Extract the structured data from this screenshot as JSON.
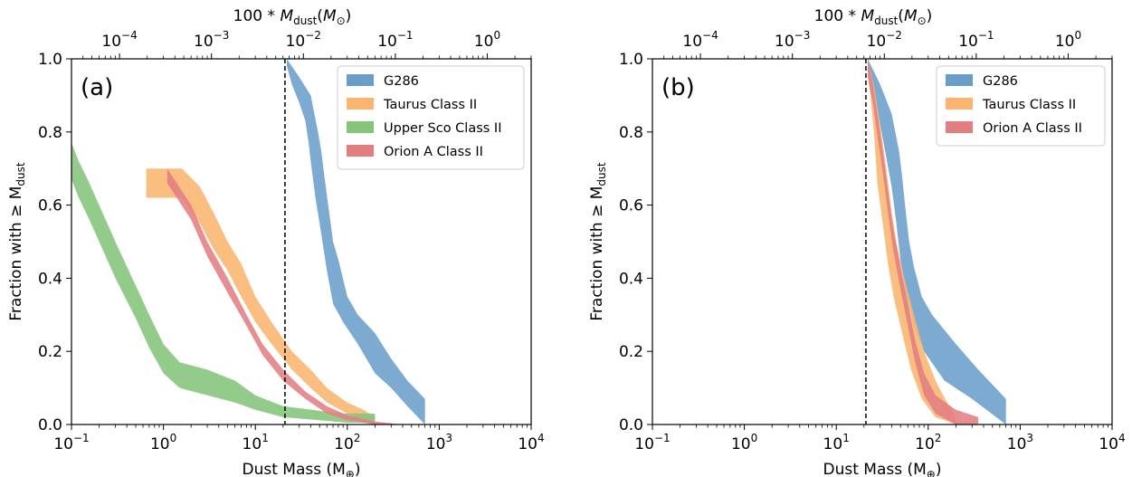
{
  "chart_data": [
    {
      "type": "area",
      "panel_label": "(a)",
      "xlabel": "Dust Mass (M⊕)",
      "ylabel": "Fraction with ≥ Mdust",
      "top_xlabel": "100 * Mdust(M⊙)",
      "xscale": "log",
      "xlim": [
        0.1,
        10000
      ],
      "ylim": [
        0.0,
        1.0
      ],
      "x_ticks": [
        0.1,
        1,
        10,
        100,
        1000,
        10000
      ],
      "x_tick_labels": [
        "10⁻¹",
        "10⁰",
        "10¹",
        "10²",
        "10³",
        "10⁴"
      ],
      "y_ticks": [
        0.0,
        0.2,
        0.4,
        0.6,
        0.8,
        1.0
      ],
      "y_tick_labels": [
        "0.0",
        "0.2",
        "0.4",
        "0.6",
        "0.8",
        "1.0"
      ],
      "top_ticks": [
        0.0001,
        0.001,
        0.01,
        0.1,
        1
      ],
      "top_tick_labels": [
        "10⁻⁴",
        "10⁻³",
        "10⁻²",
        "10⁻¹",
        "10⁰"
      ],
      "vline_x": 21,
      "legend_position": "upper right",
      "grid": false,
      "series": [
        {
          "name": "G286",
          "color": "#6a9ec9",
          "upper": [
            [
              22,
              1.0
            ],
            [
              30,
              0.95
            ],
            [
              40,
              0.9
            ],
            [
              48,
              0.8
            ],
            [
              52,
              0.75
            ],
            [
              55,
              0.7
            ],
            [
              62,
              0.6
            ],
            [
              70,
              0.5
            ],
            [
              80,
              0.45
            ],
            [
              100,
              0.35
            ],
            [
              130,
              0.3
            ],
            [
              200,
              0.25
            ],
            [
              300,
              0.18
            ],
            [
              450,
              0.12
            ],
            [
              700,
              0.07
            ]
          ],
          "lower": [
            [
              22,
              0.98
            ],
            [
              25,
              0.93
            ],
            [
              30,
              0.88
            ],
            [
              35,
              0.83
            ],
            [
              38,
              0.77
            ],
            [
              40,
              0.72
            ],
            [
              45,
              0.62
            ],
            [
              50,
              0.55
            ],
            [
              60,
              0.42
            ],
            [
              70,
              0.33
            ],
            [
              90,
              0.28
            ],
            [
              130,
              0.22
            ],
            [
              200,
              0.14
            ],
            [
              300,
              0.1
            ],
            [
              450,
              0.05
            ],
            [
              700,
              0.0
            ]
          ]
        },
        {
          "name": "Taurus Class II",
          "color": "#fbb570",
          "upper": [
            [
              0.65,
              0.7
            ],
            [
              1.6,
              0.7
            ],
            [
              2.5,
              0.65
            ],
            [
              3.5,
              0.58
            ],
            [
              5,
              0.5
            ],
            [
              7,
              0.44
            ],
            [
              10,
              0.35
            ],
            [
              15,
              0.28
            ],
            [
              25,
              0.2
            ],
            [
              40,
              0.15
            ],
            [
              60,
              0.1
            ],
            [
              100,
              0.06
            ],
            [
              150,
              0.04
            ],
            [
              200,
              0.02
            ]
          ],
          "lower": [
            [
              0.65,
              0.62
            ],
            [
              1.6,
              0.62
            ],
            [
              2.5,
              0.55
            ],
            [
              3.5,
              0.48
            ],
            [
              5,
              0.42
            ],
            [
              7,
              0.35
            ],
            [
              10,
              0.28
            ],
            [
              15,
              0.22
            ],
            [
              25,
              0.15
            ],
            [
              40,
              0.1
            ],
            [
              60,
              0.06
            ],
            [
              100,
              0.03
            ],
            [
              150,
              0.01
            ],
            [
              200,
              0.0
            ]
          ]
        },
        {
          "name": "Upper Sco Class II",
          "color": "#84c57a",
          "upper": [
            [
              0.1,
              0.77
            ],
            [
              0.12,
              0.72
            ],
            [
              0.15,
              0.67
            ],
            [
              0.2,
              0.6
            ],
            [
              0.3,
              0.5
            ],
            [
              0.5,
              0.38
            ],
            [
              0.7,
              0.3
            ],
            [
              1.0,
              0.22
            ],
            [
              1.5,
              0.17
            ],
            [
              3,
              0.15
            ],
            [
              6,
              0.12
            ],
            [
              10,
              0.08
            ],
            [
              20,
              0.05
            ],
            [
              60,
              0.035
            ],
            [
              100,
              0.03
            ],
            [
              200,
              0.03
            ]
          ],
          "lower": [
            [
              0.1,
              0.67
            ],
            [
              0.12,
              0.62
            ],
            [
              0.15,
              0.57
            ],
            [
              0.2,
              0.5
            ],
            [
              0.3,
              0.4
            ],
            [
              0.5,
              0.29
            ],
            [
              0.7,
              0.21
            ],
            [
              1.0,
              0.14
            ],
            [
              1.5,
              0.1
            ],
            [
              3,
              0.08
            ],
            [
              6,
              0.06
            ],
            [
              10,
              0.04
            ],
            [
              20,
              0.02
            ],
            [
              60,
              0.01
            ],
            [
              100,
              0.005
            ],
            [
              200,
              0.005
            ]
          ]
        },
        {
          "name": "Orion A Class II",
          "color": "#e27e82",
          "upper": [
            [
              1.1,
              0.7
            ],
            [
              2,
              0.6
            ],
            [
              3,
              0.5
            ],
            [
              5,
              0.4
            ],
            [
              8,
              0.3
            ],
            [
              12,
              0.22
            ],
            [
              20,
              0.15
            ],
            [
              35,
              0.09
            ],
            [
              60,
              0.05
            ],
            [
              100,
              0.025
            ],
            [
              200,
              0.008
            ],
            [
              400,
              0.0
            ]
          ],
          "lower": [
            [
              1.1,
              0.66
            ],
            [
              2,
              0.56
            ],
            [
              3,
              0.46
            ],
            [
              5,
              0.36
            ],
            [
              8,
              0.27
            ],
            [
              12,
              0.19
            ],
            [
              20,
              0.12
            ],
            [
              35,
              0.07
            ],
            [
              60,
              0.03
            ],
            [
              100,
              0.012
            ],
            [
              200,
              0.0
            ],
            [
              400,
              0.0
            ]
          ]
        }
      ]
    },
    {
      "type": "area",
      "panel_label": "(b)",
      "xlabel": "Dust Mass (M⊕)",
      "ylabel": "Fraction with ≥ Mdust",
      "top_xlabel": "100 * Mdust(M⊙)",
      "xscale": "log",
      "xlim": [
        0.1,
        10000
      ],
      "ylim": [
        0.0,
        1.0
      ],
      "x_ticks": [
        0.1,
        1,
        10,
        100,
        1000,
        10000
      ],
      "x_tick_labels": [
        "10⁻¹",
        "10⁰",
        "10¹",
        "10²",
        "10³",
        "10⁴"
      ],
      "y_ticks": [
        0.0,
        0.2,
        0.4,
        0.6,
        0.8,
        1.0
      ],
      "y_tick_labels": [
        "0.0",
        "0.2",
        "0.4",
        "0.6",
        "0.8",
        "1.0"
      ],
      "top_ticks": [
        0.0001,
        0.001,
        0.01,
        0.1,
        1
      ],
      "top_tick_labels": [
        "10⁻⁴",
        "10⁻³",
        "10⁻²",
        "10⁻¹",
        "10⁰"
      ],
      "vline_x": 21,
      "legend_position": "upper right",
      "grid": false,
      "series": [
        {
          "name": "G286",
          "color": "#6a9ec9",
          "upper": [
            [
              22,
              1.0
            ],
            [
              30,
              0.93
            ],
            [
              40,
              0.85
            ],
            [
              48,
              0.75
            ],
            [
              52,
              0.68
            ],
            [
              56,
              0.6
            ],
            [
              62,
              0.5
            ],
            [
              70,
              0.43
            ],
            [
              85,
              0.35
            ],
            [
              110,
              0.3
            ],
            [
              200,
              0.22
            ],
            [
              350,
              0.15
            ],
            [
              700,
              0.07
            ]
          ],
          "lower": [
            [
              22,
              0.98
            ],
            [
              26,
              0.9
            ],
            [
              30,
              0.82
            ],
            [
              35,
              0.73
            ],
            [
              40,
              0.65
            ],
            [
              45,
              0.55
            ],
            [
              50,
              0.45
            ],
            [
              58,
              0.35
            ],
            [
              70,
              0.27
            ],
            [
              90,
              0.2
            ],
            [
              150,
              0.12
            ],
            [
              300,
              0.07
            ],
            [
              700,
              0.0
            ]
          ]
        },
        {
          "name": "Taurus Class II",
          "color": "#fbb570",
          "upper": [
            [
              22,
              1.0
            ],
            [
              26,
              0.92
            ],
            [
              30,
              0.82
            ],
            [
              35,
              0.7
            ],
            [
              40,
              0.58
            ],
            [
              45,
              0.5
            ],
            [
              55,
              0.4
            ],
            [
              70,
              0.3
            ],
            [
              90,
              0.2
            ],
            [
              120,
              0.12
            ],
            [
              160,
              0.06
            ],
            [
              200,
              0.02
            ]
          ],
          "lower": [
            [
              22,
              0.96
            ],
            [
              24,
              0.88
            ],
            [
              26,
              0.78
            ],
            [
              28,
              0.66
            ],
            [
              32,
              0.55
            ],
            [
              36,
              0.45
            ],
            [
              42,
              0.35
            ],
            [
              52,
              0.25
            ],
            [
              65,
              0.15
            ],
            [
              85,
              0.07
            ],
            [
              120,
              0.02
            ],
            [
              200,
              0.0
            ]
          ]
        },
        {
          "name": "Orion A Class II",
          "color": "#e27e82",
          "upper": [
            [
              22,
              1.0
            ],
            [
              25,
              0.93
            ],
            [
              28,
              0.85
            ],
            [
              32,
              0.75
            ],
            [
              37,
              0.63
            ],
            [
              42,
              0.53
            ],
            [
              50,
              0.43
            ],
            [
              60,
              0.33
            ],
            [
              72,
              0.23
            ],
            [
              90,
              0.14
            ],
            [
              120,
              0.08
            ],
            [
              200,
              0.04
            ],
            [
              350,
              0.02
            ]
          ],
          "lower": [
            [
              22,
              0.95
            ],
            [
              25,
              0.88
            ],
            [
              28,
              0.79
            ],
            [
              32,
              0.69
            ],
            [
              37,
              0.57
            ],
            [
              42,
              0.47
            ],
            [
              50,
              0.37
            ],
            [
              60,
              0.27
            ],
            [
              72,
              0.17
            ],
            [
              90,
              0.08
            ],
            [
              120,
              0.03
            ],
            [
              200,
              0.0
            ],
            [
              350,
              0.0
            ]
          ]
        }
      ]
    }
  ]
}
